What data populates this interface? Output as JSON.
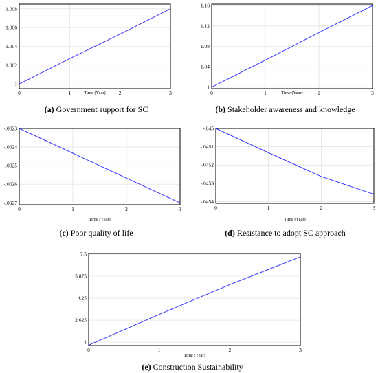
{
  "figure": {
    "panels": [
      {
        "id": "a",
        "caption_letter": "(a)",
        "caption_text": " Government support for SC",
        "chart_data": {
          "type": "line",
          "xlabel": "Time (Year)",
          "xlim": [
            0,
            3
          ],
          "ylim": [
            0.9995,
            1.0085
          ],
          "xticks": [
            0,
            1,
            2,
            3
          ],
          "xtick_labels": [
            "0",
            "1",
            "2",
            "3"
          ],
          "yticks": [
            1,
            1.002,
            1.004,
            1.006,
            1.008
          ],
          "ytick_labels": [
            "1",
            "1.002",
            "1.004",
            "1.006",
            "1.008"
          ],
          "grid": true,
          "series": [
            {
              "x": [
                0,
                1,
                2,
                3
              ],
              "y": [
                1.0,
                1.0027,
                1.0053,
                1.008
              ]
            }
          ],
          "line_color": "#3333ff"
        }
      },
      {
        "id": "b",
        "caption_letter": "(b)",
        "caption_text": " Stakeholder awareness and knowledge",
        "chart_data": {
          "type": "line",
          "xlabel": "Time (Year)",
          "xlim": [
            0,
            3
          ],
          "ylim": [
            0.997,
            1.163
          ],
          "xticks": [
            0,
            1,
            2,
            3
          ],
          "xtick_labels": [
            "0",
            "1",
            "2",
            "3"
          ],
          "yticks": [
            1,
            1.04,
            1.08,
            1.12,
            1.16
          ],
          "ytick_labels": [
            "1",
            "1.04",
            "1.08",
            "1.12",
            "1.16"
          ],
          "grid": true,
          "series": [
            {
              "x": [
                0,
                1,
                2,
                3
              ],
              "y": [
                1.0,
                1.053,
                1.107,
                1.16
              ]
            }
          ],
          "line_color": "#3333ff"
        }
      },
      {
        "id": "c",
        "caption_letter": "(c)",
        "caption_text": " Poor quality of life",
        "chart_data": {
          "type": "line",
          "xlabel": "Time (Year)",
          "xlim": [
            0,
            3
          ],
          "ylim": [
            -0.00271,
            -0.0023
          ],
          "xticks": [
            0,
            1,
            2,
            3
          ],
          "xtick_labels": [
            "0",
            "1",
            "2",
            "3"
          ],
          "yticks": [
            -0.0023,
            -0.0024,
            -0.0025,
            -0.0026,
            -0.0027
          ],
          "ytick_labels": [
            "-.0023",
            "-.0024",
            "-.0025",
            "-.0026",
            "-.0027"
          ],
          "grid": true,
          "series": [
            {
              "x": [
                0,
                1,
                2,
                3
              ],
              "y": [
                -0.0023,
                -0.002433,
                -0.002567,
                -0.0027
              ]
            }
          ],
          "line_color": "#3333ff"
        }
      },
      {
        "id": "d",
        "caption_letter": "(d)",
        "caption_text": " Resistance to adopt SC approach",
        "chart_data": {
          "type": "line",
          "xlabel": "Time (Year)",
          "xlim": [
            0,
            3
          ],
          "ylim": [
            -0.04541,
            -0.045
          ],
          "xticks": [
            0,
            1,
            2,
            3
          ],
          "xtick_labels": [
            "0",
            "1",
            "2",
            "3"
          ],
          "yticks": [
            -0.045,
            -0.0451,
            -0.0452,
            -0.0453,
            -0.0454
          ],
          "ytick_labels": [
            "-.045",
            "-.0451",
            "-.0452",
            "-.0453",
            "-.0454"
          ],
          "grid": true,
          "series": [
            {
              "x": [
                0,
                1,
                2,
                3
              ],
              "y": [
                -0.045,
                -0.045133,
                -0.045263,
                -0.04536
              ]
            }
          ],
          "line_color": "#3333ff"
        }
      },
      {
        "id": "e",
        "caption_letter": "(e)",
        "caption_text": " Construction Sustainability",
        "chart_data": {
          "type": "line",
          "xlabel": "Time (Year)",
          "xlim": [
            0,
            3
          ],
          "ylim": [
            0.75,
            7.55
          ],
          "xticks": [
            0,
            1,
            2,
            3
          ],
          "xtick_labels": [
            "0",
            "1",
            "2",
            "3"
          ],
          "yticks": [
            1,
            2.625,
            4.25,
            5.875,
            7.5
          ],
          "ytick_labels": [
            "1",
            "2.625",
            "4.25",
            "5.875",
            "7.5"
          ],
          "grid": true,
          "series": [
            {
              "x": [
                0,
                1,
                2,
                3
              ],
              "y": [
                0.78,
                3.05,
                5.25,
                7.3
              ]
            }
          ],
          "line_color": "#3333ff"
        }
      }
    ]
  }
}
